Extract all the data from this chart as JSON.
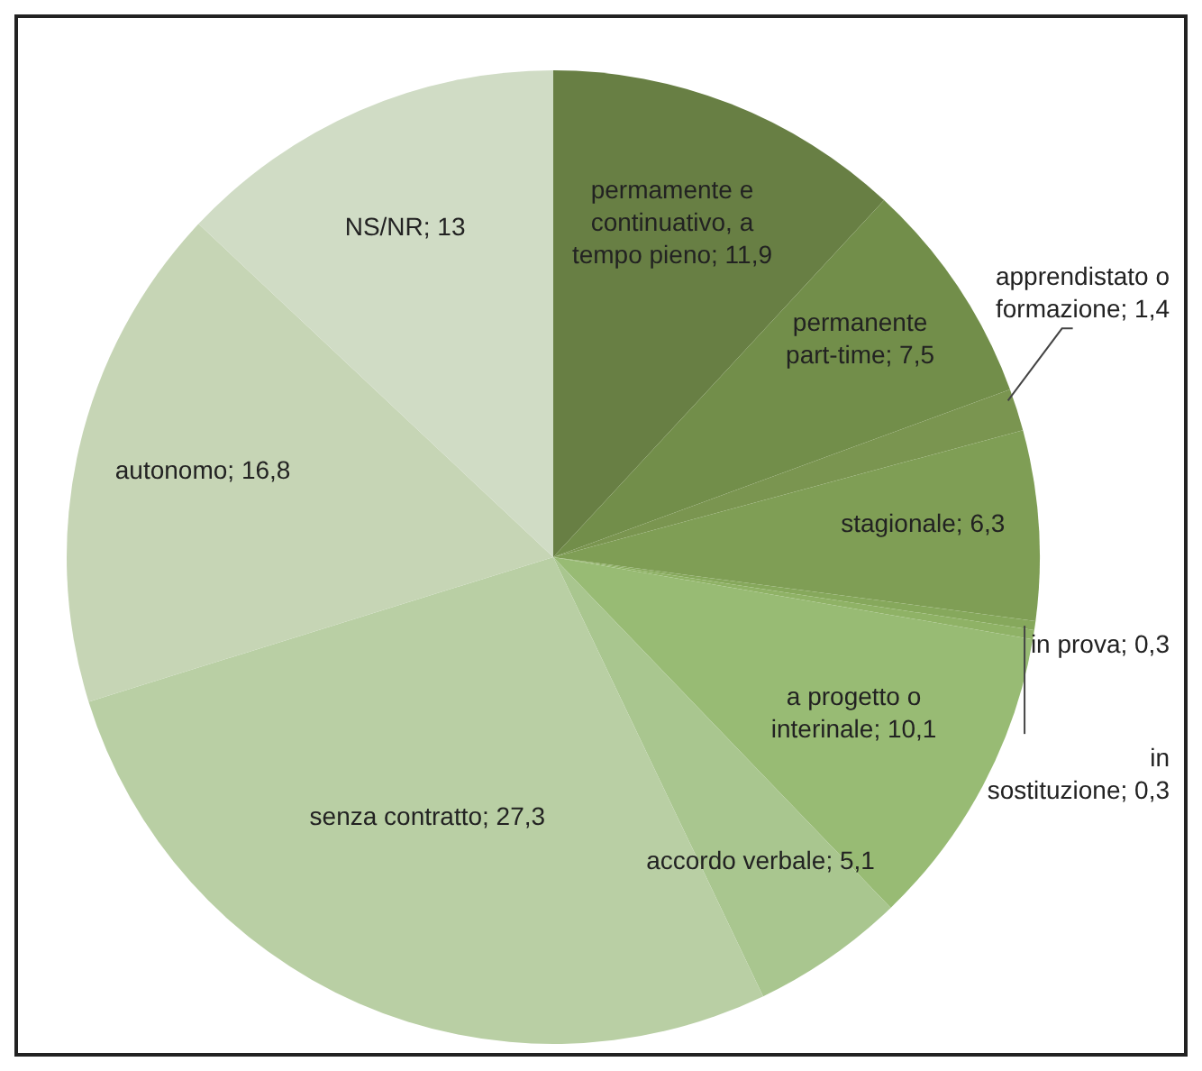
{
  "chart_data": {
    "type": "pie",
    "categories": [
      "permamente e continuativo, a tempo pieno",
      "permanente part-time",
      "apprendistato o formazione",
      "stagionale",
      "in prova",
      "in sostituzione",
      "a progetto o interinale",
      "accordo verbale",
      "senza contratto",
      "autonomo",
      "NS/NR"
    ],
    "values": [
      11.9,
      7.5,
      1.4,
      6.3,
      0.3,
      0.3,
      10.1,
      5.1,
      27.3,
      16.8,
      13
    ],
    "value_labels": [
      "11,9",
      "7,5",
      "1,4",
      "6,3",
      "0,3",
      "0,3",
      "10,1",
      "5,1",
      "27,3",
      "16,8",
      "13"
    ],
    "colors": [
      "#687f44",
      "#728e4a",
      "#7a9550",
      "#7f9e55",
      "#86a85c",
      "#8fb266",
      "#98bb74",
      "#a9c68f",
      "#b9cfa4",
      "#c6d5b5",
      "#d0dcc5"
    ]
  }
}
